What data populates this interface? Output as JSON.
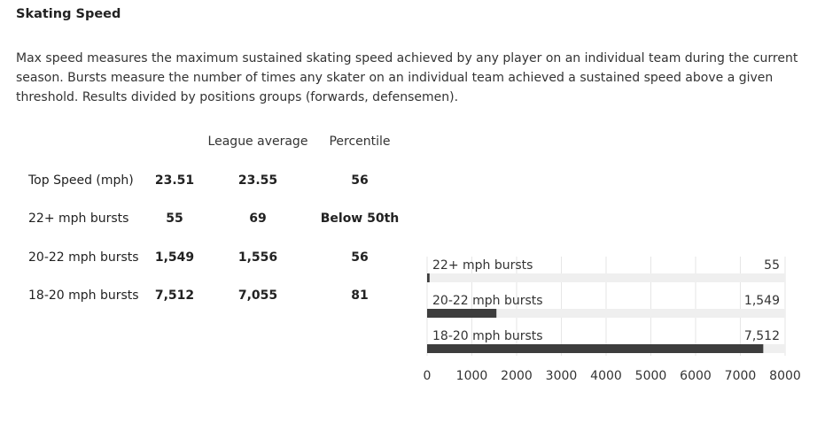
{
  "section": {
    "title": "Skating Speed",
    "description": "Max speed measures the maximum sustained skating speed achieved by any player on an individual team during the current season. Bursts measure the number of times any skater on an individual team achieved a sustained speed above a given threshold. Results divided by positions groups (forwards, defensemen)."
  },
  "table": {
    "headers": {
      "league_average": "League average",
      "percentile": "Percentile"
    },
    "rows": [
      {
        "label": "Top Speed (mph)",
        "value": "23.51",
        "league_average": "23.55",
        "percentile": "56"
      },
      {
        "label": "22+ mph bursts",
        "value": "55",
        "league_average": "69",
        "percentile": "Below 50th"
      },
      {
        "label": "20-22 mph bursts",
        "value": "1,549",
        "league_average": "1,556",
        "percentile": "56"
      },
      {
        "label": "18-20 mph bursts",
        "value": "7,512",
        "league_average": "7,055",
        "percentile": "81"
      }
    ]
  },
  "colors": {
    "bar": "#3d3d3d",
    "track": "#efefef",
    "grid": "#e6e6e6"
  },
  "chart_data": {
    "type": "bar",
    "orientation": "horizontal",
    "categories": [
      "22+ mph bursts",
      "20-22 mph bursts",
      "18-20 mph bursts"
    ],
    "values": [
      55,
      1549,
      7512
    ],
    "value_labels": [
      "55",
      "1,549",
      "7,512"
    ],
    "xlim": [
      0,
      8000
    ],
    "xticks": [
      0,
      1000,
      2000,
      3000,
      4000,
      5000,
      6000,
      7000,
      8000
    ],
    "grid": true,
    "title": "",
    "xlabel": "",
    "ylabel": ""
  }
}
